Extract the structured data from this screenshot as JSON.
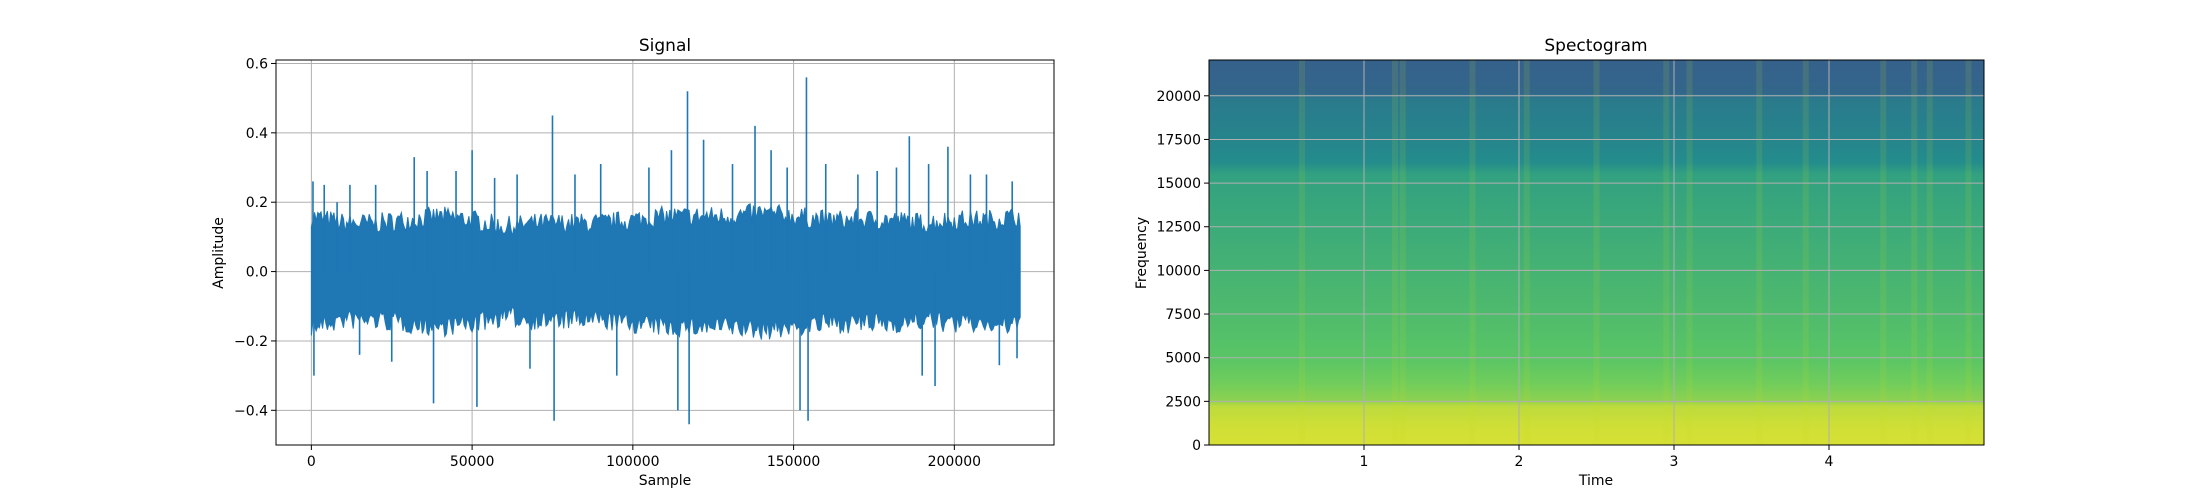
{
  "chart_data": [
    {
      "type": "line",
      "title": "Signal",
      "xlabel": "Sample",
      "ylabel": "Amplitude",
      "xlim": [
        -11000,
        231000
      ],
      "ylim": [
        -0.5,
        0.61
      ],
      "x_ticks": [
        0,
        50000,
        100000,
        150000,
        200000
      ],
      "x_tick_labels": [
        "0",
        "50000",
        "100000",
        "150000",
        "200000"
      ],
      "y_ticks": [
        -0.4,
        -0.2,
        0.0,
        0.2,
        0.4,
        0.6
      ],
      "y_tick_labels": [
        "−0.4",
        "−0.2",
        "0.0",
        "0.2",
        "0.4",
        "0.6"
      ],
      "grid": true,
      "series_color": "#1f77b4",
      "sample_count": 220500,
      "envelope": {
        "x": [
          0,
          10000,
          20000,
          30000,
          40000,
          50000,
          60000,
          70000,
          80000,
          90000,
          100000,
          110000,
          120000,
          130000,
          140000,
          150000,
          160000,
          170000,
          180000,
          190000,
          200000,
          210000,
          220000
        ],
        "upper": [
          0.15,
          0.13,
          0.13,
          0.14,
          0.15,
          0.14,
          0.12,
          0.13,
          0.13,
          0.13,
          0.14,
          0.15,
          0.15,
          0.15,
          0.16,
          0.15,
          0.14,
          0.14,
          0.14,
          0.13,
          0.14,
          0.14,
          0.15
        ],
        "lower": [
          -0.15,
          -0.13,
          -0.13,
          -0.14,
          -0.15,
          -0.14,
          -0.12,
          -0.13,
          -0.13,
          -0.13,
          -0.14,
          -0.15,
          -0.15,
          -0.15,
          -0.16,
          -0.15,
          -0.14,
          -0.14,
          -0.14,
          -0.13,
          -0.14,
          -0.14,
          -0.15
        ]
      },
      "peaks": [
        {
          "x": 500,
          "y": 0.26
        },
        {
          "x": 800,
          "y": -0.3
        },
        {
          "x": 4000,
          "y": 0.25
        },
        {
          "x": 8000,
          "y": 0.2
        },
        {
          "x": 12000,
          "y": 0.25
        },
        {
          "x": 15000,
          "y": -0.24
        },
        {
          "x": 20000,
          "y": 0.25
        },
        {
          "x": 25000,
          "y": -0.26
        },
        {
          "x": 32000,
          "y": 0.33
        },
        {
          "x": 36000,
          "y": 0.29
        },
        {
          "x": 38000,
          "y": -0.38
        },
        {
          "x": 45000,
          "y": 0.29
        },
        {
          "x": 50000,
          "y": 0.35
        },
        {
          "x": 51500,
          "y": -0.39
        },
        {
          "x": 57000,
          "y": 0.27
        },
        {
          "x": 64000,
          "y": 0.28
        },
        {
          "x": 68000,
          "y": -0.28
        },
        {
          "x": 75000,
          "y": 0.45
        },
        {
          "x": 75500,
          "y": -0.43
        },
        {
          "x": 82000,
          "y": 0.28
        },
        {
          "x": 90000,
          "y": 0.31
        },
        {
          "x": 95000,
          "y": -0.3
        },
        {
          "x": 105000,
          "y": 0.3
        },
        {
          "x": 112000,
          "y": 0.35
        },
        {
          "x": 114000,
          "y": -0.4
        },
        {
          "x": 117000,
          "y": 0.52
        },
        {
          "x": 117500,
          "y": -0.44
        },
        {
          "x": 122000,
          "y": 0.38
        },
        {
          "x": 131000,
          "y": 0.31
        },
        {
          "x": 138000,
          "y": 0.42
        },
        {
          "x": 143000,
          "y": 0.35
        },
        {
          "x": 148000,
          "y": 0.3
        },
        {
          "x": 152000,
          "y": -0.4
        },
        {
          "x": 154000,
          "y": 0.56
        },
        {
          "x": 154500,
          "y": -0.43
        },
        {
          "x": 160000,
          "y": 0.31
        },
        {
          "x": 170000,
          "y": 0.28
        },
        {
          "x": 176000,
          "y": 0.29
        },
        {
          "x": 182000,
          "y": 0.3
        },
        {
          "x": 186000,
          "y": 0.39
        },
        {
          "x": 190000,
          "y": -0.3
        },
        {
          "x": 192000,
          "y": 0.31
        },
        {
          "x": 194000,
          "y": -0.33
        },
        {
          "x": 198000,
          "y": 0.36
        },
        {
          "x": 205000,
          "y": 0.28
        },
        {
          "x": 210000,
          "y": 0.28
        },
        {
          "x": 214000,
          "y": -0.27
        },
        {
          "x": 218000,
          "y": 0.26
        },
        {
          "x": 219500,
          "y": -0.25
        }
      ]
    },
    {
      "type": "heatmap",
      "title": "Spectogram",
      "xlabel": "Time",
      "ylabel": "Frequency",
      "xlim": [
        0,
        5.0
      ],
      "ylim": [
        0,
        22050
      ],
      "x_ticks": [
        1,
        2,
        3,
        4
      ],
      "x_tick_labels": [
        "1",
        "2",
        "3",
        "4"
      ],
      "y_ticks": [
        0,
        2500,
        5000,
        7500,
        10000,
        12500,
        15000,
        17500,
        20000
      ],
      "y_tick_labels": [
        "0",
        "2500",
        "5000",
        "7500",
        "10000",
        "12500",
        "15000",
        "17500",
        "20000"
      ],
      "grid": true,
      "colormap": "viridis",
      "color_scale": [
        {
          "level": 0.0,
          "color": "#440154"
        },
        {
          "level": 0.25,
          "color": "#3b528b"
        },
        {
          "level": 0.5,
          "color": "#21918c"
        },
        {
          "level": 0.75,
          "color": "#5ec962"
        },
        {
          "level": 1.0,
          "color": "#fde725"
        }
      ],
      "frequency_profile": [
        {
          "f": 0,
          "level": 0.94
        },
        {
          "f": 1000,
          "level": 0.93
        },
        {
          "f": 2200,
          "level": 0.9
        },
        {
          "f": 2600,
          "level": 0.82
        },
        {
          "f": 3500,
          "level": 0.78
        },
        {
          "f": 5000,
          "level": 0.73
        },
        {
          "f": 8000,
          "level": 0.68
        },
        {
          "f": 12000,
          "level": 0.62
        },
        {
          "f": 15500,
          "level": 0.57
        },
        {
          "f": 16200,
          "level": 0.48
        },
        {
          "f": 18000,
          "level": 0.44
        },
        {
          "f": 19800,
          "level": 0.41
        },
        {
          "f": 20200,
          "level": 0.33
        },
        {
          "f": 22050,
          "level": 0.31
        }
      ],
      "bright_times": [
        0.6,
        1.2,
        1.25,
        1.7,
        2.05,
        2.5,
        2.95,
        3.1,
        3.55,
        3.85,
        4.35,
        4.55,
        4.65,
        4.9
      ]
    }
  ]
}
